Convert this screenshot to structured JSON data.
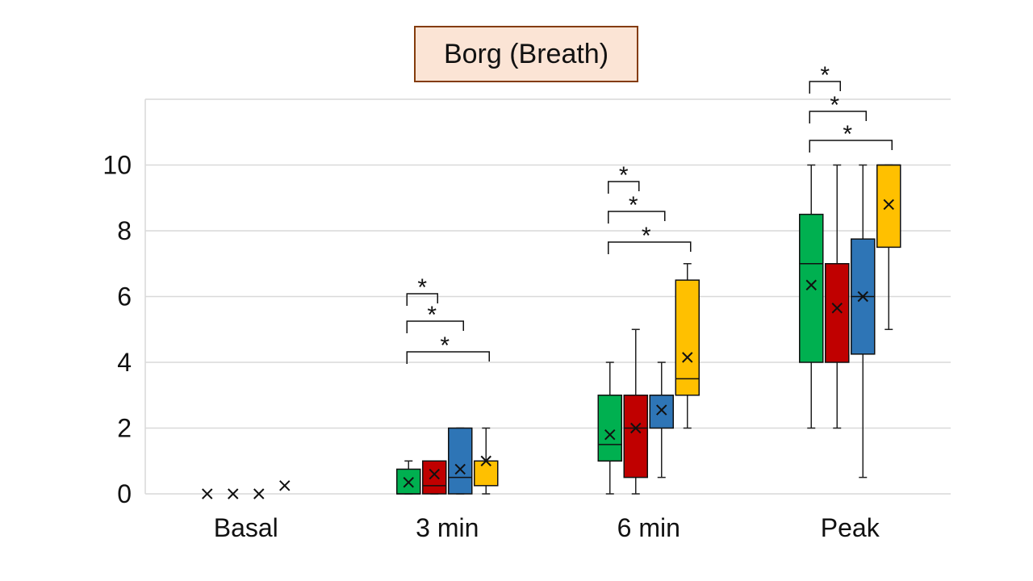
{
  "chart_data": {
    "type": "box",
    "title": "Borg (Breath)",
    "xlabel": "",
    "ylabel": "",
    "ylim": [
      0,
      12
    ],
    "yticks": [
      0,
      2,
      4,
      6,
      8,
      10
    ],
    "grid": true,
    "categories": [
      "Basal",
      "3 min",
      "6 min",
      "Peak"
    ],
    "colors": [
      "#00b050",
      "#c00000",
      "#2e75b6",
      "#ffc000"
    ],
    "groups": [
      {
        "category": "Basal",
        "boxes": [
          {
            "min": 0,
            "q1": 0,
            "median": 0,
            "q3": 0,
            "max": 0,
            "mean": 0
          },
          {
            "min": 0,
            "q1": 0,
            "median": 0,
            "q3": 0,
            "max": 0,
            "mean": 0
          },
          {
            "min": 0,
            "q1": 0,
            "median": 0,
            "q3": 0,
            "max": 0,
            "mean": 0
          },
          {
            "min": 0,
            "q1": 0,
            "median": 0,
            "q3": 0,
            "max": 0,
            "mean": 0.25
          }
        ],
        "significance": []
      },
      {
        "category": "3 min",
        "boxes": [
          {
            "min": 0,
            "q1": 0,
            "median": 0,
            "q3": 0.75,
            "max": 1,
            "mean": 0.35
          },
          {
            "min": 0,
            "q1": 0,
            "median": 0.25,
            "q3": 1,
            "max": 1,
            "mean": 0.6
          },
          {
            "min": 0,
            "q1": 0,
            "median": 0.5,
            "q3": 2,
            "max": 2,
            "mean": 0.75
          },
          {
            "min": 0,
            "q1": 0.25,
            "median": 1,
            "q3": 1,
            "max": 2,
            "mean": 1
          }
        ],
        "significance": [
          {
            "from": 0,
            "to": 1,
            "label": "*"
          },
          {
            "from": 0,
            "to": 2,
            "label": "*"
          },
          {
            "from": 0,
            "to": 3,
            "label": "*"
          }
        ]
      },
      {
        "category": "6 min",
        "boxes": [
          {
            "min": 0,
            "q1": 1,
            "median": 1.5,
            "q3": 3,
            "max": 4,
            "mean": 1.8
          },
          {
            "min": 0,
            "q1": 0.5,
            "median": 2,
            "q3": 3,
            "max": 5,
            "mean": 2
          },
          {
            "min": 0.5,
            "q1": 2,
            "median": 3,
            "q3": 3,
            "max": 4,
            "mean": 2.55
          },
          {
            "min": 2,
            "q1": 3,
            "median": 3.5,
            "q3": 6.5,
            "max": 7,
            "mean": 4.15
          }
        ],
        "significance": [
          {
            "from": 0,
            "to": 1,
            "label": "*"
          },
          {
            "from": 0,
            "to": 2,
            "label": "*"
          },
          {
            "from": 0,
            "to": 3,
            "label": "*"
          }
        ]
      },
      {
        "category": "Peak",
        "boxes": [
          {
            "min": 2,
            "q1": 4,
            "median": 7,
            "q3": 8.5,
            "max": 10,
            "mean": 6.35
          },
          {
            "min": 2,
            "q1": 4,
            "median": 7,
            "q3": 7,
            "max": 10,
            "mean": 5.65
          },
          {
            "min": 0.5,
            "q1": 4.25,
            "median": 6,
            "q3": 7.75,
            "max": 10,
            "mean": 6
          },
          {
            "min": 5,
            "q1": 7.5,
            "median": 10,
            "q3": 10,
            "max": 10,
            "mean": 8.8
          }
        ],
        "significance": [
          {
            "from": 0,
            "to": 1,
            "label": "*"
          },
          {
            "from": 0,
            "to": 2,
            "label": "*"
          },
          {
            "from": 0,
            "to": 3,
            "label": "*"
          }
        ]
      }
    ]
  }
}
